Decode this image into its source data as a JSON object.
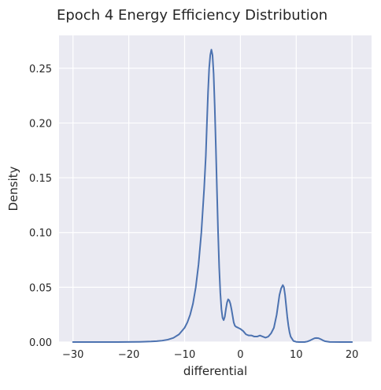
{
  "chart_data": {
    "type": "line",
    "title": "Epoch 4 Energy Efficiency Distribution",
    "xlabel": "differential",
    "ylabel": "Density",
    "xlim": [
      -32.5,
      23.5
    ],
    "ylim": [
      0,
      0.28
    ],
    "x_ticks": [
      -30,
      -20,
      -10,
      0,
      10,
      20
    ],
    "y_ticks": [
      0.0,
      0.05,
      0.1,
      0.15,
      0.2,
      0.25
    ],
    "x_tick_labels": [
      "−30",
      "−20",
      "−10",
      "0",
      "10",
      "20"
    ],
    "y_tick_labels": [
      "0.00",
      "0.05",
      "0.10",
      "0.15",
      "0.20",
      "0.25"
    ],
    "grid": true,
    "legend": "none",
    "colors": {
      "plot_background": "#eaeaf2",
      "grid": "#ffffff",
      "line": "#4c72b0",
      "text": "#262626"
    },
    "series": [
      {
        "x": [
          -30,
          -28,
          -26,
          -24,
          -22,
          -20,
          -18,
          -16,
          -15,
          -14,
          -13,
          -12,
          -11,
          -10,
          -9.5,
          -9,
          -8.5,
          -8,
          -7.5,
          -7,
          -6.5,
          -6.2,
          -6,
          -5.8,
          -5.6,
          -5.4,
          -5.2,
          -5,
          -4.8,
          -4.6,
          -4.4,
          -4.2,
          -4,
          -3.8,
          -3.6,
          -3.4,
          -3.2,
          -3,
          -2.8,
          -2.6,
          -2.4,
          -2.2,
          -2,
          -1.8,
          -1.6,
          -1.4,
          -1.2,
          -1,
          -0.8,
          -0.6,
          -0.4,
          -0.2,
          0,
          0.5,
          1,
          1.5,
          2,
          2.5,
          3,
          3.5,
          4,
          4.5,
          5,
          5.5,
          6,
          6.5,
          7,
          7.3,
          7.6,
          7.8,
          8,
          8.2,
          8.4,
          8.6,
          8.8,
          9,
          9.5,
          10,
          10.5,
          11,
          11.5,
          12,
          12.5,
          13,
          13.3,
          13.6,
          14,
          14.4,
          14.8,
          15.2,
          16,
          18,
          20
        ],
        "y": [
          0,
          0,
          0,
          0,
          0,
          0.0001,
          0.0002,
          0.0005,
          0.0008,
          0.0013,
          0.0022,
          0.0038,
          0.007,
          0.013,
          0.018,
          0.025,
          0.035,
          0.05,
          0.071,
          0.1,
          0.14,
          0.17,
          0.2,
          0.228,
          0.25,
          0.262,
          0.267,
          0.262,
          0.245,
          0.215,
          0.178,
          0.138,
          0.1,
          0.068,
          0.045,
          0.03,
          0.022,
          0.02,
          0.023,
          0.03,
          0.036,
          0.039,
          0.038,
          0.035,
          0.03,
          0.024,
          0.018,
          0.015,
          0.014,
          0.0135,
          0.013,
          0.0125,
          0.012,
          0.01,
          0.007,
          0.006,
          0.006,
          0.005,
          0.005,
          0.006,
          0.005,
          0.004,
          0.005,
          0.008,
          0.013,
          0.025,
          0.043,
          0.049,
          0.052,
          0.05,
          0.043,
          0.033,
          0.023,
          0.015,
          0.009,
          0.005,
          0.001,
          0.0002,
          0,
          0,
          0,
          0.0005,
          0.0015,
          0.0028,
          0.0035,
          0.0037,
          0.0035,
          0.0026,
          0.0015,
          0.0007,
          0.0001,
          0,
          0
        ]
      }
    ]
  }
}
